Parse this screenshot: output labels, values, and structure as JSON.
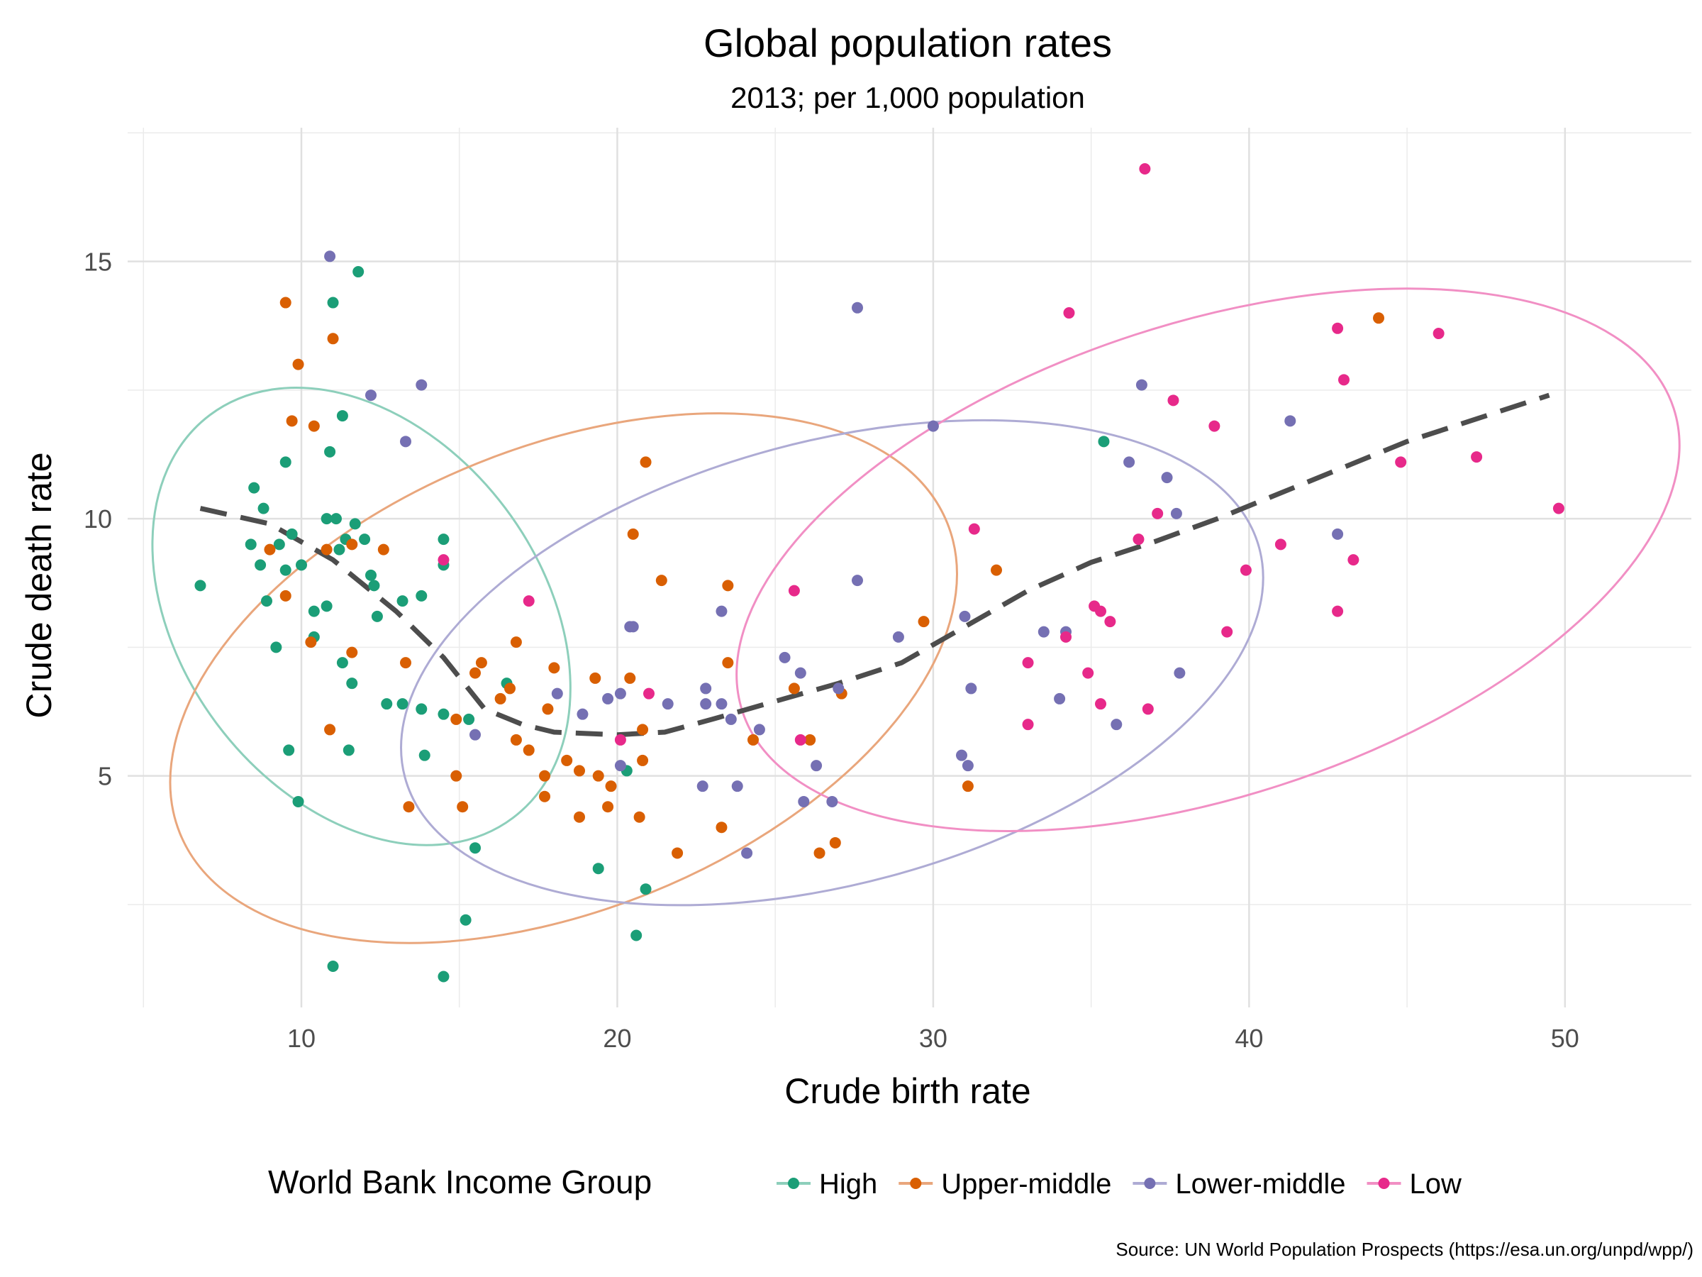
{
  "chart_data": {
    "type": "scatter",
    "title": "Global population rates",
    "subtitle": "2013; per 1,000 population",
    "xlabel": "Crude birth rate",
    "ylabel": "Crude death rate",
    "caption": "Source: UN World Population Prospects (https://esa.un.org/unpd/wpp/)",
    "xlim": [
      4.5,
      54
    ],
    "ylim": [
      0.5,
      17.6
    ],
    "x_ticks": [
      10,
      20,
      30,
      40,
      50
    ],
    "y_ticks": [
      5,
      10,
      15
    ],
    "grid": true,
    "legend": {
      "title": "World Bank Income Group",
      "position": "bottom"
    },
    "series": [
      {
        "name": "High",
        "color": "#1b9e77",
        "ellipse_color": "#8dcfbb",
        "points": [
          [
            6.8,
            8.7
          ],
          [
            8.4,
            9.5
          ],
          [
            8.5,
            10.6
          ],
          [
            8.7,
            9.1
          ],
          [
            8.8,
            10.2
          ],
          [
            8.9,
            8.4
          ],
          [
            9.2,
            7.5
          ],
          [
            9.3,
            9.5
          ],
          [
            9.5,
            11.1
          ],
          [
            9.5,
            9.0
          ],
          [
            9.6,
            5.5
          ],
          [
            9.7,
            9.7
          ],
          [
            9.9,
            4.5
          ],
          [
            10.0,
            9.1
          ],
          [
            10.4,
            8.2
          ],
          [
            10.4,
            7.7
          ],
          [
            10.8,
            8.3
          ],
          [
            10.8,
            10.0
          ],
          [
            10.9,
            11.3
          ],
          [
            11.0,
            14.2
          ],
          [
            11.0,
            1.3
          ],
          [
            11.1,
            10.0
          ],
          [
            11.2,
            9.4
          ],
          [
            11.3,
            12.0
          ],
          [
            11.3,
            7.2
          ],
          [
            11.4,
            9.6
          ],
          [
            11.5,
            5.5
          ],
          [
            11.6,
            6.8
          ],
          [
            11.7,
            9.9
          ],
          [
            11.8,
            14.8
          ],
          [
            12.0,
            9.6
          ],
          [
            12.2,
            8.9
          ],
          [
            12.3,
            8.7
          ],
          [
            12.4,
            8.1
          ],
          [
            12.7,
            6.4
          ],
          [
            13.2,
            8.4
          ],
          [
            13.2,
            6.4
          ],
          [
            13.8,
            8.5
          ],
          [
            13.8,
            6.3
          ],
          [
            13.9,
            5.4
          ],
          [
            14.5,
            6.2
          ],
          [
            14.5,
            9.6
          ],
          [
            14.5,
            9.1
          ],
          [
            14.5,
            1.1
          ],
          [
            15.2,
            2.2
          ],
          [
            15.3,
            6.1
          ],
          [
            15.5,
            3.6
          ],
          [
            16.5,
            6.8
          ],
          [
            19.4,
            3.2
          ],
          [
            20.3,
            5.1
          ],
          [
            20.6,
            1.9
          ],
          [
            20.9,
            2.8
          ],
          [
            35.4,
            11.5
          ]
        ]
      },
      {
        "name": "Upper-middle",
        "color": "#d95f02",
        "ellipse_color": "#e9a67c",
        "points": [
          [
            9.0,
            9.4
          ],
          [
            9.5,
            14.2
          ],
          [
            9.5,
            8.5
          ],
          [
            9.7,
            11.9
          ],
          [
            9.9,
            13.0
          ],
          [
            10.3,
            7.6
          ],
          [
            10.4,
            11.8
          ],
          [
            10.8,
            9.4
          ],
          [
            10.9,
            5.9
          ],
          [
            11.0,
            13.5
          ],
          [
            11.6,
            9.5
          ],
          [
            11.6,
            7.4
          ],
          [
            12.6,
            9.4
          ],
          [
            13.3,
            7.2
          ],
          [
            13.4,
            4.4
          ],
          [
            14.9,
            5.0
          ],
          [
            14.9,
            6.1
          ],
          [
            15.1,
            4.4
          ],
          [
            15.5,
            7.0
          ],
          [
            15.7,
            7.2
          ],
          [
            16.3,
            6.5
          ],
          [
            16.6,
            6.7
          ],
          [
            16.8,
            5.7
          ],
          [
            16.8,
            7.6
          ],
          [
            17.2,
            5.5
          ],
          [
            17.7,
            5.0
          ],
          [
            17.7,
            4.6
          ],
          [
            17.8,
            6.3
          ],
          [
            18.0,
            7.1
          ],
          [
            18.4,
            5.3
          ],
          [
            18.8,
            4.2
          ],
          [
            18.8,
            5.1
          ],
          [
            19.3,
            6.9
          ],
          [
            19.4,
            5.0
          ],
          [
            19.7,
            4.4
          ],
          [
            19.8,
            4.8
          ],
          [
            20.4,
            6.9
          ],
          [
            20.5,
            9.7
          ],
          [
            20.7,
            4.2
          ],
          [
            20.8,
            5.3
          ],
          [
            20.8,
            5.9
          ],
          [
            20.9,
            11.1
          ],
          [
            21.4,
            8.8
          ],
          [
            21.9,
            3.5
          ],
          [
            23.3,
            4.0
          ],
          [
            23.5,
            7.2
          ],
          [
            23.5,
            8.7
          ],
          [
            24.3,
            5.7
          ],
          [
            25.6,
            6.7
          ],
          [
            26.1,
            5.7
          ],
          [
            26.4,
            3.5
          ],
          [
            26.9,
            3.7
          ],
          [
            27.1,
            6.6
          ],
          [
            29.7,
            8.0
          ],
          [
            31.1,
            4.8
          ],
          [
            32.0,
            9.0
          ],
          [
            44.1,
            13.9
          ]
        ]
      },
      {
        "name": "Lower-middle",
        "color": "#7570b3",
        "ellipse_color": "#aeabd4",
        "points": [
          [
            10.9,
            15.1
          ],
          [
            12.2,
            12.4
          ],
          [
            13.3,
            11.5
          ],
          [
            13.8,
            12.6
          ],
          [
            15.5,
            5.8
          ],
          [
            18.1,
            6.6
          ],
          [
            18.9,
            6.2
          ],
          [
            19.7,
            6.5
          ],
          [
            20.1,
            5.2
          ],
          [
            20.1,
            6.6
          ],
          [
            20.4,
            7.9
          ],
          [
            20.5,
            7.9
          ],
          [
            21.6,
            6.4
          ],
          [
            22.7,
            4.8
          ],
          [
            22.8,
            6.7
          ],
          [
            22.8,
            6.4
          ],
          [
            23.3,
            6.4
          ],
          [
            23.3,
            8.2
          ],
          [
            23.6,
            6.1
          ],
          [
            23.8,
            4.8
          ],
          [
            24.1,
            3.5
          ],
          [
            24.5,
            5.9
          ],
          [
            25.3,
            7.3
          ],
          [
            25.8,
            7.0
          ],
          [
            25.9,
            4.5
          ],
          [
            26.3,
            5.2
          ],
          [
            26.8,
            4.5
          ],
          [
            27.0,
            6.7
          ],
          [
            27.6,
            8.8
          ],
          [
            27.6,
            14.1
          ],
          [
            28.9,
            7.7
          ],
          [
            30.0,
            11.8
          ],
          [
            30.9,
            5.4
          ],
          [
            31.0,
            8.1
          ],
          [
            31.1,
            5.2
          ],
          [
            31.2,
            6.7
          ],
          [
            33.5,
            7.8
          ],
          [
            34.0,
            6.5
          ],
          [
            34.2,
            7.8
          ],
          [
            35.8,
            6.0
          ],
          [
            36.2,
            11.1
          ],
          [
            36.6,
            12.6
          ],
          [
            37.4,
            10.8
          ],
          [
            37.7,
            10.1
          ],
          [
            37.8,
            7.0
          ],
          [
            41.3,
            11.9
          ],
          [
            42.8,
            9.7
          ]
        ]
      },
      {
        "name": "Low",
        "color": "#e7298a",
        "ellipse_color": "#f18fc4",
        "points": [
          [
            14.5,
            9.2
          ],
          [
            17.2,
            8.4
          ],
          [
            20.1,
            5.7
          ],
          [
            21.0,
            6.6
          ],
          [
            25.6,
            8.6
          ],
          [
            25.8,
            5.7
          ],
          [
            31.3,
            9.8
          ],
          [
            33.0,
            7.2
          ],
          [
            33.0,
            6.0
          ],
          [
            34.2,
            7.7
          ],
          [
            34.3,
            14.0
          ],
          [
            34.9,
            7.0
          ],
          [
            35.1,
            8.3
          ],
          [
            35.3,
            6.4
          ],
          [
            35.3,
            8.2
          ],
          [
            35.6,
            8.0
          ],
          [
            36.5,
            9.6
          ],
          [
            36.7,
            16.8
          ],
          [
            36.8,
            6.3
          ],
          [
            37.1,
            10.1
          ],
          [
            37.6,
            12.3
          ],
          [
            38.9,
            11.8
          ],
          [
            39.3,
            7.8
          ],
          [
            39.9,
            9.0
          ],
          [
            41.0,
            9.5
          ],
          [
            42.8,
            8.2
          ],
          [
            42.8,
            13.7
          ],
          [
            43.0,
            12.7
          ],
          [
            43.3,
            9.2
          ],
          [
            44.8,
            11.1
          ],
          [
            46.0,
            13.6
          ],
          [
            47.2,
            11.2
          ],
          [
            49.8,
            10.2
          ]
        ]
      }
    ],
    "trend_line": {
      "style": "dashed",
      "color": "#4d4d4d",
      "points": [
        [
          6.8,
          10.2
        ],
        [
          9,
          9.9
        ],
        [
          11,
          9.2
        ],
        [
          13,
          8.2
        ],
        [
          14.5,
          7.3
        ],
        [
          15.8,
          6.3
        ],
        [
          17,
          6.0
        ],
        [
          18,
          5.85
        ],
        [
          20,
          5.8
        ],
        [
          21.5,
          5.85
        ],
        [
          23,
          6.1
        ],
        [
          25,
          6.45
        ],
        [
          27,
          6.8
        ],
        [
          29,
          7.2
        ],
        [
          31,
          7.9
        ],
        [
          33,
          8.6
        ],
        [
          35,
          9.15
        ],
        [
          37,
          9.55
        ],
        [
          39,
          10.0
        ],
        [
          41,
          10.5
        ],
        [
          43,
          11.0
        ],
        [
          45,
          11.5
        ],
        [
          47,
          11.9
        ],
        [
          49.5,
          12.4
        ]
      ]
    },
    "ellipses": [
      {
        "group": "High",
        "cx": 11.9,
        "cy": 8.1,
        "rx_units": 5.7,
        "ry_units": 4.9,
        "rotation_deg": 37
      },
      {
        "group": "Upper-middle",
        "cx": 18.3,
        "cy": 6.9,
        "rx_units": 13.1,
        "ry_units": 4.5,
        "rotation_deg": 22
      },
      {
        "group": "Lower-middle",
        "cx": 26.8,
        "cy": 7.2,
        "rx_units": 14.0,
        "ry_units": 4.3,
        "rotation_deg": 15
      },
      {
        "group": "Low",
        "cx": 38.7,
        "cy": 9.2,
        "rx_units": 15.5,
        "ry_units": 4.6,
        "rotation_deg": 18
      }
    ]
  }
}
